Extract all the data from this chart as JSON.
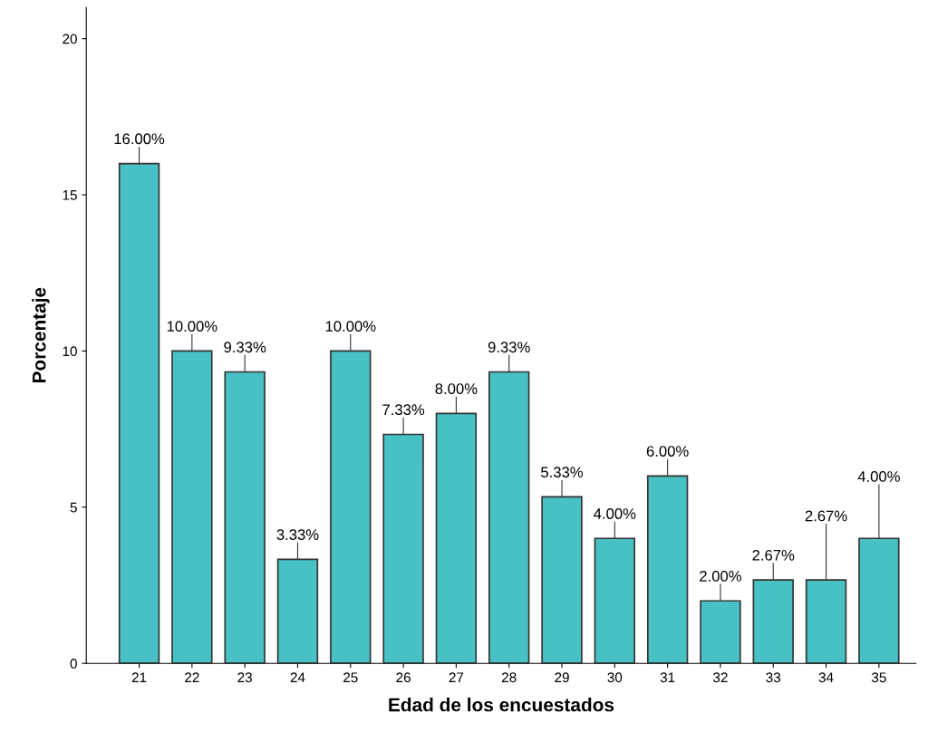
{
  "chart_data": {
    "type": "bar",
    "xlabel": "Edad de los encuestados",
    "ylabel": "Porcentaje",
    "categories": [
      "21",
      "22",
      "23",
      "24",
      "25",
      "26",
      "27",
      "28",
      "29",
      "30",
      "31",
      "32",
      "33",
      "34",
      "35"
    ],
    "values": [
      16.0,
      10.0,
      9.33,
      3.33,
      10.0,
      7.33,
      8.0,
      9.33,
      5.33,
      4.0,
      6.0,
      2.0,
      2.67,
      2.67,
      4.0
    ],
    "value_labels": [
      "16.00%",
      "10.00%",
      "9.33%",
      "3.33%",
      "10.00%",
      "7.33%",
      "8.00%",
      "9.33%",
      "5.33%",
      "4.00%",
      "6.00%",
      "2.00%",
      "2.67%",
      "2.67%",
      "4.00%"
    ],
    "color": "#48c1c5",
    "ylim": [
      0,
      21
    ],
    "yticks": [
      0,
      5,
      10,
      15,
      20
    ],
    "grid": false
  }
}
